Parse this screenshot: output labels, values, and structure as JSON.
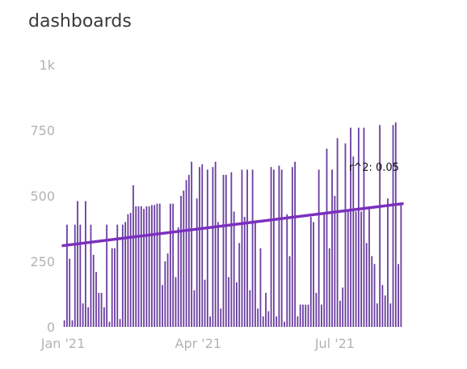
{
  "title": "dashboards",
  "chart_data": {
    "type": "bar",
    "title": "dashboards",
    "xlabel": "",
    "ylabel": "",
    "ylim": [
      0,
      1000
    ],
    "y_ticks": [
      "0",
      "250",
      "500",
      "750",
      "1k"
    ],
    "y_tick_values": [
      0,
      250,
      500,
      750,
      1000
    ],
    "x_range": [
      "2021-01-01",
      "2021-08-15"
    ],
    "x_ticks": [
      {
        "label": "Jan '21",
        "date": "2021-01-01"
      },
      {
        "label": "Apr '21",
        "date": "2021-04-01"
      },
      {
        "label": "Jul '21",
        "date": "2021-07-01"
      }
    ],
    "grid": false,
    "bar_color": "#6a3ea1",
    "values": [
      25,
      390,
      260,
      25,
      390,
      480,
      390,
      90,
      480,
      75,
      390,
      275,
      210,
      130,
      130,
      75,
      390,
      20,
      300,
      300,
      390,
      30,
      390,
      400,
      430,
      435,
      540,
      460,
      460,
      460,
      450,
      460,
      460,
      465,
      465,
      470,
      470,
      160,
      250,
      280,
      470,
      470,
      190,
      380,
      500,
      520,
      560,
      580,
      630,
      140,
      490,
      610,
      620,
      180,
      600,
      40,
      610,
      630,
      400,
      70,
      580,
      580,
      190,
      590,
      440,
      170,
      320,
      600,
      420,
      600,
      140,
      600,
      400,
      70,
      300,
      40,
      130,
      60,
      610,
      600,
      40,
      615,
      600,
      20,
      430,
      270,
      610,
      630,
      40,
      85,
      85,
      85,
      85,
      420,
      400,
      130,
      600,
      85,
      430,
      680,
      300,
      600,
      500,
      720,
      100,
      150,
      700,
      440,
      760,
      650,
      440,
      760,
      440,
      760,
      320,
      460,
      270,
      240,
      90,
      770,
      160,
      120,
      490,
      90,
      770,
      780,
      240,
      470
    ],
    "trend_line": {
      "start": 310,
      "end": 470,
      "color": "#7b2fbe"
    },
    "annotation": "r^2: 0.05"
  }
}
